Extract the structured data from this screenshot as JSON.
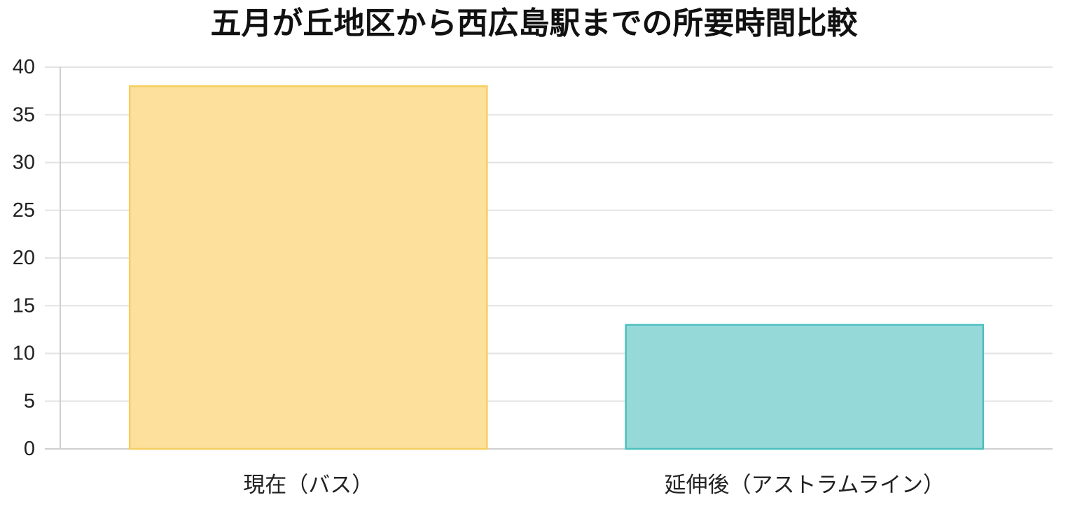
{
  "chart_data": {
    "type": "bar",
    "title": "五月が丘地区から西広島駅までの所要時間比較",
    "categories": [
      "現在（バス）",
      "延伸後（アストラムライン）"
    ],
    "values": [
      38,
      13
    ],
    "ylim": [
      0,
      40
    ],
    "yticks": [
      0,
      5,
      10,
      15,
      20,
      25,
      30,
      35,
      40
    ],
    "grid": true,
    "legend": "none",
    "colors": {
      "fills": [
        "#fce09b",
        "#96d9d9"
      ],
      "strokes": [
        "#f7cf60",
        "#4bbfbf"
      ],
      "grid": "#e3e3e3",
      "axis": "#cfcfcf"
    }
  }
}
